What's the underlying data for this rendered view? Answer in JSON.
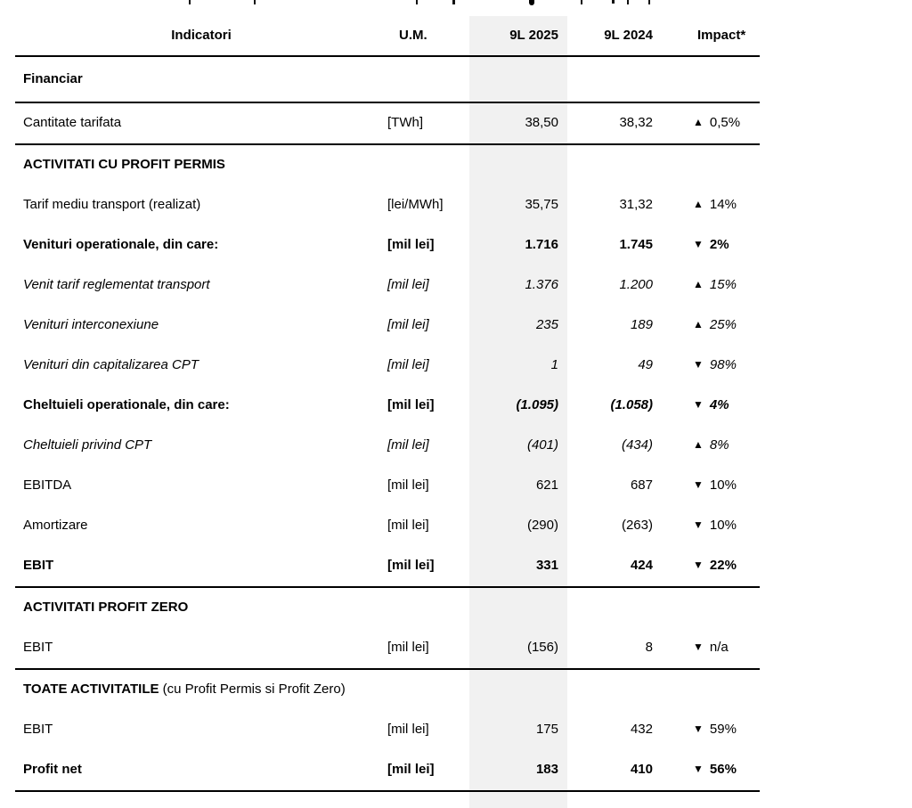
{
  "table": {
    "columns": [
      "Indicatori",
      "U.M.",
      "9L 2025",
      "9L 2024",
      "Impact*"
    ],
    "highlight_color": "#f1f1f1",
    "rows": [
      {
        "type": "section",
        "title": "Financiar",
        "subtitle": "",
        "divider_below": true
      },
      {
        "type": "data",
        "label": "Cantitate tarifata",
        "um": "[TWh]",
        "v2025": "38,50",
        "v2024": "38,32",
        "impact_dir": "up",
        "impact_icon": "▲",
        "impact_value": "0,5%",
        "style": "n",
        "value_style": "n",
        "divider_below": true
      },
      {
        "type": "section",
        "title": "ACTIVITATI CU PROFIT PERMIS",
        "subtitle": "",
        "divider_below": false
      },
      {
        "type": "data",
        "label": "Tarif mediu transport (realizat)",
        "um": "[lei/MWh]",
        "v2025": "35,75",
        "v2024": "31,32",
        "impact_dir": "up",
        "impact_icon": "▲",
        "impact_value": "14%",
        "style": "n",
        "value_style": "n",
        "divider_below": false
      },
      {
        "type": "data",
        "label": "Venituri operationale, din care:",
        "um": "[mil lei]",
        "v2025": "1.716",
        "v2024": "1.745",
        "impact_dir": "down",
        "impact_icon": "▼",
        "impact_value": "2%",
        "style": "b",
        "value_style": "b",
        "divider_below": false
      },
      {
        "type": "data",
        "label": "Venit tarif reglementat transport",
        "um": "[mil lei]",
        "v2025": "1.376",
        "v2024": "1.200",
        "impact_dir": "up",
        "impact_icon": "▲",
        "impact_value": "15%",
        "style": "i",
        "value_style": "i",
        "divider_below": false
      },
      {
        "type": "data",
        "label": "Venituri interconexiune",
        "um": "[mil lei]",
        "v2025": "235",
        "v2024": "189",
        "impact_dir": "up",
        "impact_icon": "▲",
        "impact_value": "25%",
        "style": "i",
        "value_style": "i",
        "divider_below": false
      },
      {
        "type": "data",
        "label": "Venituri din capitalizarea CPT",
        "um": "[mil lei]",
        "v2025": "1",
        "v2024": "49",
        "impact_dir": "down",
        "impact_icon": "▼",
        "impact_value": "98%",
        "style": "i",
        "value_style": "i",
        "divider_below": false
      },
      {
        "type": "data",
        "label": "Cheltuieli operationale, din care:",
        "um": "[mil lei]",
        "v2025": "(1.095)",
        "v2024": "(1.058)",
        "impact_dir": "down",
        "impact_icon": "▼",
        "impact_value": "4%",
        "style": "b",
        "value_style": "bi",
        "divider_below": false
      },
      {
        "type": "data",
        "label": "Cheltuieli privind CPT",
        "um": "[mil lei]",
        "v2025": "(401)",
        "v2024": "(434)",
        "impact_dir": "up",
        "impact_icon": "▲",
        "impact_value": "8%",
        "style": "i",
        "value_style": "i",
        "divider_below": false
      },
      {
        "type": "data",
        "label": "EBITDA",
        "um": "[mil lei]",
        "v2025": "621",
        "v2024": "687",
        "impact_dir": "down",
        "impact_icon": "▼",
        "impact_value": "10%",
        "style": "n",
        "value_style": "n",
        "divider_below": false
      },
      {
        "type": "data",
        "label": "Amortizare",
        "um": "[mil lei]",
        "v2025": "(290)",
        "v2024": "(263)",
        "impact_dir": "down",
        "impact_icon": "▼",
        "impact_value": "10%",
        "style": "n",
        "value_style": "n",
        "divider_below": false
      },
      {
        "type": "data",
        "label": "EBIT",
        "um": "[mil lei]",
        "v2025": "331",
        "v2024": "424",
        "impact_dir": "down",
        "impact_icon": "▼",
        "impact_value": "22%",
        "style": "b",
        "value_style": "b",
        "divider_below": true
      },
      {
        "type": "section",
        "title": "ACTIVITATI PROFIT ZERO",
        "subtitle": "",
        "divider_below": false
      },
      {
        "type": "data",
        "label": "EBIT",
        "um": "[mil lei]",
        "v2025": "(156)",
        "v2024": "8",
        "impact_dir": "down",
        "impact_icon": "▼",
        "impact_value": "n/a",
        "style": "n",
        "value_style": "n",
        "divider_below": true
      },
      {
        "type": "section",
        "title": "TOATE ACTIVITATILE",
        "subtitle": " (cu Profit Permis si Profit Zero)",
        "divider_below": false
      },
      {
        "type": "data",
        "label": "EBIT",
        "um": "[mil lei]",
        "v2025": "175",
        "v2024": "432",
        "impact_dir": "down",
        "impact_icon": "▼",
        "impact_value": "59%",
        "style": "n",
        "value_style": "n",
        "divider_below": false
      },
      {
        "type": "data",
        "label": "Profit net",
        "um": "[mil lei]",
        "v2025": "183",
        "v2024": "410",
        "impact_dir": "down",
        "impact_icon": "▼",
        "impact_value": "56%",
        "style": "b",
        "value_style": "b",
        "divider_below": true
      }
    ]
  }
}
